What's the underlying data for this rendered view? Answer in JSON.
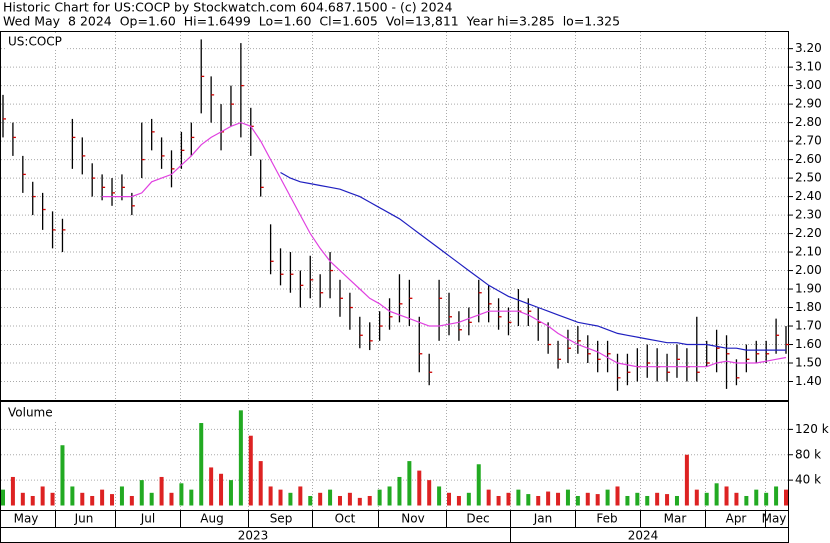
{
  "chart_data": [
    {
      "type": "ohlc",
      "title": "Historic Chart for US:COCP by Stockwatch.com 604.687.1500 - (c) 2024",
      "subtitle": "Wed May  8 2024  Op=1.60  Hi=1.6499  Lo=1.60  Cl=1.605  Vol=13,811  Year hi=3.285  lo=1.325",
      "panel_label": "US:COCP",
      "bar_color": "#000000",
      "ylim": [
        1.3,
        3.29
      ],
      "yticks": [
        {
          "value": 1.4,
          "label": "1.40"
        },
        {
          "value": 1.5,
          "label": "1.50"
        },
        {
          "value": 1.6,
          "label": "1.60"
        },
        {
          "value": 1.7,
          "label": "1.70"
        },
        {
          "value": 1.8,
          "label": "1.80"
        },
        {
          "value": 1.9,
          "label": "1.90"
        },
        {
          "value": 2.0,
          "label": "2.00"
        },
        {
          "value": 2.1,
          "label": "2.10"
        },
        {
          "value": 2.2,
          "label": "2.20"
        },
        {
          "value": 2.3,
          "label": "2.30"
        },
        {
          "value": 2.4,
          "label": "2.40"
        },
        {
          "value": 2.5,
          "label": "2.50"
        },
        {
          "value": 2.6,
          "label": "2.60"
        },
        {
          "value": 2.7,
          "label": "2.70"
        },
        {
          "value": 2.8,
          "label": "2.80"
        },
        {
          "value": 2.9,
          "label": "2.90"
        },
        {
          "value": 3.0,
          "label": "3.00"
        },
        {
          "value": 3.1,
          "label": "3.10"
        },
        {
          "value": 3.2,
          "label": "3.20"
        }
      ],
      "grid": true,
      "high": [
        2.95,
        2.8,
        2.62,
        2.48,
        2.42,
        2.32,
        2.28,
        2.82,
        2.72,
        2.58,
        2.52,
        2.5,
        2.52,
        2.42,
        2.8,
        2.82,
        2.72,
        2.65,
        2.75,
        2.8,
        3.25,
        3.05,
        2.9,
        3.0,
        3.23,
        2.88,
        2.6,
        2.25,
        2.12,
        2.1,
        2.0,
        2.08,
        1.98,
        2.1,
        1.95,
        1.88,
        1.75,
        1.72,
        1.78,
        1.85,
        1.98,
        1.95,
        1.75,
        1.55,
        1.95,
        1.88,
        1.78,
        1.8,
        1.95,
        1.92,
        1.85,
        1.8,
        1.9,
        1.85,
        1.8,
        1.72,
        1.62,
        1.68,
        1.7,
        1.65,
        1.62,
        1.62,
        1.55,
        1.55,
        1.58,
        1.6,
        1.58,
        1.55,
        1.6,
        1.58,
        1.75,
        1.62,
        1.68,
        1.65,
        1.52,
        1.6,
        1.62,
        1.62,
        1.74,
        1.7
      ],
      "low": [
        2.72,
        2.62,
        2.42,
        2.3,
        2.22,
        2.12,
        2.1,
        2.55,
        2.52,
        2.4,
        2.38,
        2.35,
        2.38,
        2.3,
        2.5,
        2.65,
        2.55,
        2.45,
        2.55,
        2.62,
        2.85,
        2.8,
        2.65,
        2.78,
        2.72,
        2.62,
        2.4,
        1.98,
        1.92,
        1.88,
        1.8,
        1.85,
        1.8,
        1.85,
        1.75,
        1.68,
        1.58,
        1.57,
        1.62,
        1.68,
        1.72,
        1.7,
        1.45,
        1.38,
        1.62,
        1.65,
        1.62,
        1.65,
        1.72,
        1.72,
        1.68,
        1.65,
        1.7,
        1.7,
        1.62,
        1.55,
        1.47,
        1.5,
        1.55,
        1.5,
        1.45,
        1.45,
        1.35,
        1.38,
        1.4,
        1.42,
        1.4,
        1.4,
        1.42,
        1.4,
        1.4,
        1.48,
        1.45,
        1.36,
        1.38,
        1.45,
        1.5,
        1.5,
        1.55,
        1.55
      ],
      "close": [
        2.82,
        2.72,
        2.52,
        2.4,
        2.33,
        2.22,
        2.22,
        2.72,
        2.62,
        2.5,
        2.45,
        2.42,
        2.45,
        2.35,
        2.6,
        2.75,
        2.62,
        2.55,
        2.65,
        2.72,
        3.05,
        2.95,
        2.75,
        2.9,
        3.0,
        2.78,
        2.45,
        2.05,
        1.98,
        1.98,
        1.92,
        1.95,
        1.88,
        2.0,
        1.85,
        1.8,
        1.65,
        1.62,
        1.7,
        1.75,
        1.82,
        1.85,
        1.55,
        1.45,
        1.85,
        1.75,
        1.68,
        1.72,
        1.88,
        1.82,
        1.75,
        1.72,
        1.78,
        1.78,
        1.72,
        1.6,
        1.52,
        1.58,
        1.62,
        1.55,
        1.52,
        1.55,
        1.42,
        1.45,
        1.48,
        1.5,
        1.48,
        1.45,
        1.52,
        1.48,
        1.45,
        1.5,
        1.58,
        1.55,
        1.42,
        1.52,
        1.55,
        1.55,
        1.65,
        1.6
      ],
      "series": [
        {
          "color": "#e040e0",
          "values": [
            null,
            null,
            null,
            null,
            null,
            null,
            null,
            null,
            null,
            null,
            2.4,
            2.4,
            2.4,
            2.4,
            2.42,
            2.48,
            2.5,
            2.52,
            2.57,
            2.62,
            2.68,
            2.72,
            2.75,
            2.78,
            2.8,
            2.78,
            2.7,
            2.6,
            2.5,
            2.4,
            2.3,
            2.2,
            2.12,
            2.05,
            2.0,
            1.95,
            1.9,
            1.85,
            1.82,
            1.78,
            1.76,
            1.74,
            1.72,
            1.7,
            1.7,
            1.71,
            1.72,
            1.74,
            1.76,
            1.78,
            1.78,
            1.78,
            1.78,
            1.76,
            1.73,
            1.7,
            1.66,
            1.63,
            1.6,
            1.58,
            1.56,
            1.53,
            1.5,
            1.49,
            1.48,
            1.48,
            1.48,
            1.48,
            1.48,
            1.48,
            1.48,
            1.48,
            1.5,
            1.51,
            1.5,
            1.5,
            1.5,
            1.51,
            1.52,
            1.53
          ]
        },
        {
          "color": "#2020c0",
          "values": [
            null,
            null,
            null,
            null,
            null,
            null,
            null,
            null,
            null,
            null,
            null,
            null,
            null,
            null,
            null,
            null,
            null,
            null,
            null,
            null,
            null,
            null,
            null,
            null,
            null,
            null,
            null,
            null,
            2.53,
            2.5,
            2.48,
            2.47,
            2.46,
            2.45,
            2.44,
            2.42,
            2.4,
            2.37,
            2.34,
            2.31,
            2.28,
            2.24,
            2.2,
            2.16,
            2.12,
            2.08,
            2.04,
            2.0,
            1.96,
            1.92,
            1.89,
            1.86,
            1.84,
            1.82,
            1.8,
            1.78,
            1.76,
            1.74,
            1.72,
            1.71,
            1.7,
            1.68,
            1.66,
            1.65,
            1.64,
            1.63,
            1.62,
            1.61,
            1.61,
            1.6,
            1.6,
            1.6,
            1.59,
            1.58,
            1.58,
            1.57,
            1.57,
            1.57,
            1.57,
            1.57
          ]
        }
      ],
      "x_labels": [
        "May",
        "Jun",
        "Jul",
        "Aug",
        "Sep",
        "Oct",
        "Nov",
        "Dec",
        "Jan",
        "Feb",
        "Mar",
        "Apr",
        "May"
      ],
      "years": [
        "2023",
        "2024"
      ]
    },
    {
      "type": "bar",
      "panel_label": "Volume",
      "up_color": "#22aa22",
      "down_color": "#dd2222",
      "ylim": [
        0,
        160000
      ],
      "yticks": [
        {
          "value": 40000,
          "label": "40 k"
        },
        {
          "value": 80000,
          "label": "80 k"
        },
        {
          "value": 120000,
          "label": "120 k"
        }
      ],
      "values": [
        25000,
        45000,
        20000,
        15000,
        30000,
        20000,
        95000,
        30000,
        20000,
        15000,
        25000,
        18000,
        30000,
        15000,
        40000,
        20000,
        45000,
        20000,
        35000,
        25000,
        130000,
        60000,
        50000,
        40000,
        150000,
        110000,
        70000,
        30000,
        25000,
        20000,
        30000,
        15000,
        20000,
        25000,
        15000,
        20000,
        12000,
        15000,
        25000,
        30000,
        45000,
        70000,
        55000,
        40000,
        30000,
        20000,
        15000,
        20000,
        65000,
        25000,
        15000,
        20000,
        25000,
        18000,
        15000,
        22000,
        20000,
        25000,
        15000,
        20000,
        18000,
        25000,
        30000,
        15000,
        20000,
        15000,
        20000,
        18000,
        15000,
        80000,
        25000,
        20000,
        35000,
        30000,
        20000,
        15000,
        25000,
        20000,
        30000,
        25000
      ]
    }
  ]
}
